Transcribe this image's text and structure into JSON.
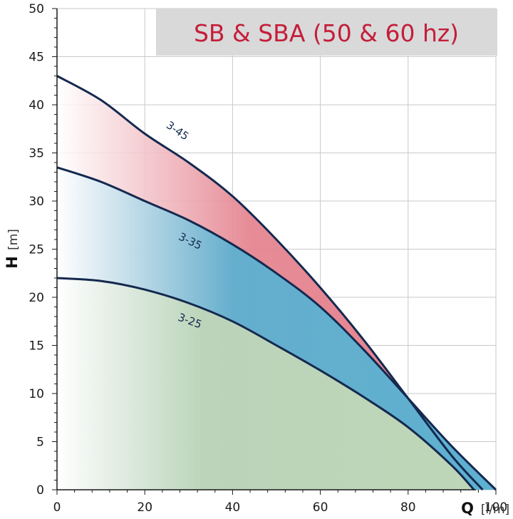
{
  "chart_data": {
    "type": "area",
    "title": "SB & SBA (50 & 60 hz)",
    "xlabel": "Q",
    "xunit": "[l/m]",
    "ylabel": "H",
    "yunit": "[m]",
    "xlim": [
      0,
      100
    ],
    "ylim": [
      0,
      50
    ],
    "xticks": [
      0,
      20,
      40,
      60,
      80,
      100
    ],
    "yticks": [
      0,
      5,
      10,
      15,
      20,
      25,
      30,
      35,
      40,
      45,
      50
    ],
    "grid": true,
    "series": [
      {
        "name": "3-45",
        "color": "#e4808c",
        "x": [
          0,
          10,
          20,
          30,
          40,
          50,
          60,
          70,
          80,
          90,
          97
        ],
        "y": [
          43,
          40.5,
          37,
          34,
          30.5,
          26,
          21,
          15.5,
          9.5,
          3.5,
          0
        ]
      },
      {
        "name": "3-35",
        "color": "#5eb0d0",
        "x": [
          0,
          10,
          20,
          30,
          40,
          50,
          60,
          70,
          80,
          90,
          100
        ],
        "y": [
          33.5,
          32,
          30,
          28,
          25.5,
          22.5,
          19,
          14.5,
          9.5,
          4.5,
          0
        ]
      },
      {
        "name": "3-25",
        "color": "#bfd6b8",
        "x": [
          0,
          10,
          20,
          30,
          40,
          50,
          60,
          70,
          80,
          90,
          95
        ],
        "y": [
          22,
          21.7,
          20.8,
          19.4,
          17.5,
          15,
          12.4,
          9.6,
          6.5,
          2.5,
          0
        ]
      }
    ],
    "title_style": {
      "color": "#c41e3a",
      "background": "#d9d9d9"
    },
    "line_color": "#14294f"
  }
}
